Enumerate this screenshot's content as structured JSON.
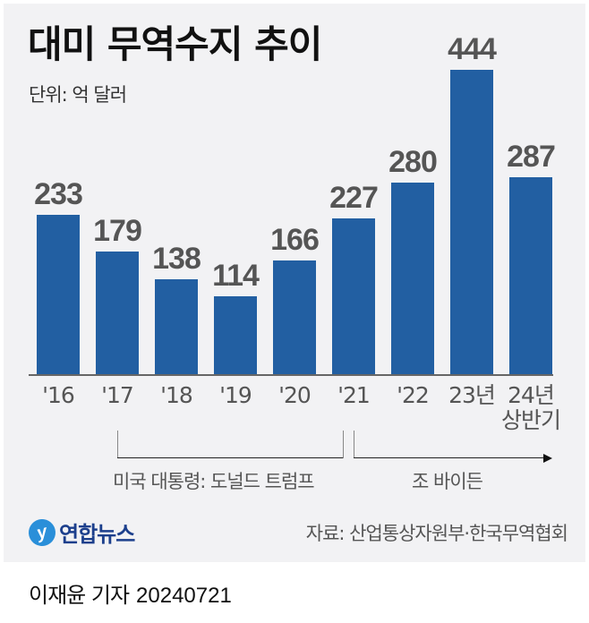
{
  "header": {
    "title": "대미 무역수지 추이",
    "unit": "단위: 억 달러"
  },
  "bar_color": "#225fa2",
  "chart_data": {
    "type": "bar",
    "title": "대미 무역수지 추이",
    "subtitle": "단위: 억 달러",
    "categories": [
      "'16",
      "'17",
      "'18",
      "'19",
      "'20",
      "'21",
      "'22",
      "23년",
      "24년 상반기"
    ],
    "values": [
      233,
      179,
      138,
      114,
      166,
      227,
      280,
      444,
      287
    ],
    "value_labels": [
      "233",
      "179",
      "138",
      "114",
      "166",
      "227",
      "280",
      "444",
      "287"
    ],
    "xlabel": "",
    "ylabel": "억 달러",
    "ylim": [
      0,
      444
    ],
    "grid": false,
    "legend": null,
    "annotations": [
      {
        "text": "미국 대통령: 도널드 트럼프",
        "span": [
          "'17",
          "'20"
        ]
      },
      {
        "text": "조 바이든",
        "span": [
          "'21",
          "24년 상반기"
        ],
        "arrow": true
      }
    ]
  },
  "categories_display": [
    {
      "line1": "'16",
      "line2": ""
    },
    {
      "line1": "'17",
      "line2": ""
    },
    {
      "line1": "'18",
      "line2": ""
    },
    {
      "line1": "'19",
      "line2": ""
    },
    {
      "line1": "'20",
      "line2": ""
    },
    {
      "line1": "'21",
      "line2": ""
    },
    {
      "line1": "'22",
      "line2": ""
    },
    {
      "line1": "23년",
      "line2": ""
    },
    {
      "line1": "24년",
      "line2": "상반기"
    }
  ],
  "eras": {
    "trump": "미국 대통령: 도널드 트럼프",
    "biden": "조 바이든"
  },
  "footer": {
    "logo_text": "연합뉴스",
    "source": "자료: 산업통상자원부·한국무역협회",
    "reporter": "이재윤 기자",
    "date": "20240721"
  }
}
